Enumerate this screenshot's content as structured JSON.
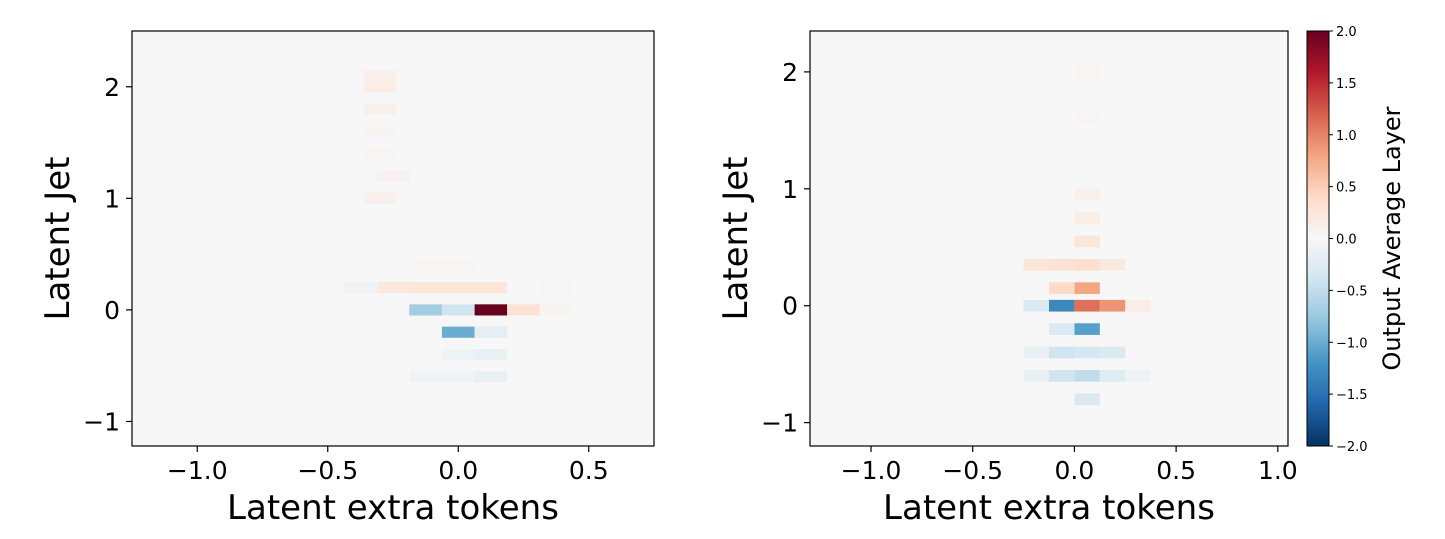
{
  "chart_data": [
    {
      "type": "heatmap",
      "xlabel": "Latent extra tokens",
      "ylabel": "Latent Jet",
      "xlim": [
        -1.25,
        0.75
      ],
      "ylim": [
        -1.22,
        2.5
      ],
      "xticks": [
        {
          "value": -1.0,
          "label": "−1.0"
        },
        {
          "value": -0.5,
          "label": "−0.5"
        },
        {
          "value": 0.0,
          "label": "0.0"
        },
        {
          "value": 0.5,
          "label": "0.5"
        }
      ],
      "yticks": [
        {
          "value": -1,
          "label": "−1"
        },
        {
          "value": 0,
          "label": "0"
        },
        {
          "value": 1,
          "label": "1"
        },
        {
          "value": 2,
          "label": "2"
        }
      ],
      "bin_size": [
        0.125,
        0.1
      ],
      "background_value": 0.0,
      "cells": [
        {
          "x": 0.125,
          "y": 0.0,
          "value": 2.0
        },
        {
          "x": -0.125,
          "y": 0.0,
          "value": -0.7
        },
        {
          "x": 0.0,
          "y": 0.0,
          "value": -0.4
        },
        {
          "x": 0.0,
          "y": -0.2,
          "value": -1.0
        },
        {
          "x": -0.125,
          "y": 0.2,
          "value": 0.25
        },
        {
          "x": 0.0,
          "y": 0.2,
          "value": 0.25
        },
        {
          "x": 0.125,
          "y": 0.2,
          "value": 0.25
        },
        {
          "x": -0.25,
          "y": 0.2,
          "value": 0.2
        },
        {
          "x": 0.25,
          "y": 0.0,
          "value": 0.3
        },
        {
          "x": -0.3,
          "y": 2.1,
          "value": 0.1
        },
        {
          "x": -0.3,
          "y": 2.0,
          "value": 0.15
        },
        {
          "x": -0.3,
          "y": 1.8,
          "value": 0.1
        },
        {
          "x": -0.3,
          "y": 1.6,
          "value": 0.05
        },
        {
          "x": -0.3,
          "y": 1.4,
          "value": 0.05
        },
        {
          "x": -0.25,
          "y": 1.2,
          "value": 0.08
        },
        {
          "x": -0.3,
          "y": 1.0,
          "value": 0.1
        },
        {
          "x": 0.125,
          "y": -0.2,
          "value": -0.2
        },
        {
          "x": 0.125,
          "y": -0.4,
          "value": -0.15
        },
        {
          "x": 0.0,
          "y": -0.4,
          "value": -0.1
        },
        {
          "x": 0.125,
          "y": -0.6,
          "value": -0.15
        },
        {
          "x": 0.0,
          "y": -0.6,
          "value": -0.08
        },
        {
          "x": -0.125,
          "y": -0.6,
          "value": -0.08
        },
        {
          "x": 0.375,
          "y": 0.2,
          "value": 0.05
        },
        {
          "x": 0.375,
          "y": 0.0,
          "value": 0.05
        },
        {
          "x": -0.375,
          "y": 0.2,
          "value": -0.08
        },
        {
          "x": -0.125,
          "y": 0.4,
          "value": 0.05
        },
        {
          "x": 0.0,
          "y": 0.4,
          "value": 0.05
        }
      ]
    },
    {
      "type": "heatmap",
      "xlabel": "Latent extra tokens",
      "ylabel": "Latent Jet",
      "xlim": [
        -1.3,
        1.05
      ],
      "ylim": [
        -1.2,
        2.35
      ],
      "xticks": [
        {
          "value": -1.0,
          "label": "−1.0"
        },
        {
          "value": -0.5,
          "label": "−0.5"
        },
        {
          "value": 0.0,
          "label": "0.0"
        },
        {
          "value": 0.5,
          "label": "0.5"
        },
        {
          "value": 1.0,
          "label": "1.0"
        }
      ],
      "yticks": [
        {
          "value": -1,
          "label": "−1"
        },
        {
          "value": 0,
          "label": "0"
        },
        {
          "value": 1,
          "label": "1"
        },
        {
          "value": 2,
          "label": "2"
        }
      ],
      "bin_size": [
        0.125,
        0.1
      ],
      "background_value": 0.0,
      "cells": [
        {
          "x": -0.0625,
          "y": 0.0,
          "value": -1.3
        },
        {
          "x": 0.0625,
          "y": 0.0,
          "value": 1.1
        },
        {
          "x": 0.1875,
          "y": 0.0,
          "value": 0.9
        },
        {
          "x": 0.0625,
          "y": -0.2,
          "value": -1.1
        },
        {
          "x": 0.0625,
          "y": 0.15,
          "value": 0.8
        },
        {
          "x": -0.0625,
          "y": 0.15,
          "value": 0.4
        },
        {
          "x": 0.0625,
          "y": 0.35,
          "value": 0.35
        },
        {
          "x": -0.0625,
          "y": 0.35,
          "value": 0.3
        },
        {
          "x": -0.1875,
          "y": 0.35,
          "value": 0.25
        },
        {
          "x": 0.1875,
          "y": 0.35,
          "value": 0.2
        },
        {
          "x": 0.0625,
          "y": 0.55,
          "value": 0.25
        },
        {
          "x": 0.0625,
          "y": 0.75,
          "value": 0.15
        },
        {
          "x": 0.0625,
          "y": 0.95,
          "value": 0.1
        },
        {
          "x": 0.3125,
          "y": 0.0,
          "value": 0.15
        },
        {
          "x": -0.1875,
          "y": 0.0,
          "value": -0.3
        },
        {
          "x": -0.0625,
          "y": -0.2,
          "value": -0.3
        },
        {
          "x": -0.0625,
          "y": -0.4,
          "value": -0.4
        },
        {
          "x": 0.0625,
          "y": -0.4,
          "value": -0.35
        },
        {
          "x": 0.0625,
          "y": -0.6,
          "value": -0.5
        },
        {
          "x": -0.0625,
          "y": -0.6,
          "value": -0.4
        },
        {
          "x": 0.0625,
          "y": -0.8,
          "value": -0.3
        },
        {
          "x": 0.1875,
          "y": -0.4,
          "value": -0.3
        },
        {
          "x": 0.1875,
          "y": -0.6,
          "value": -0.25
        },
        {
          "x": -0.1875,
          "y": -0.4,
          "value": -0.15
        },
        {
          "x": -0.1875,
          "y": -0.6,
          "value": -0.15
        },
        {
          "x": 0.3125,
          "y": -0.6,
          "value": -0.12
        },
        {
          "x": 0.0625,
          "y": 2.0,
          "value": 0.05
        },
        {
          "x": 0.0625,
          "y": 1.6,
          "value": 0.05
        }
      ]
    }
  ],
  "colorbar": {
    "label": "Output Average Layer",
    "range": [
      -2.0,
      2.0
    ],
    "ticks": [
      {
        "value": 2.0,
        "label": "2.0"
      },
      {
        "value": 1.5,
        "label": "1.5"
      },
      {
        "value": 1.0,
        "label": "1.0"
      },
      {
        "value": 0.5,
        "label": "0.5"
      },
      {
        "value": 0.0,
        "label": "0.0"
      },
      {
        "value": -0.5,
        "label": "−0.5"
      },
      {
        "value": -1.0,
        "label": "−1.0"
      },
      {
        "value": -1.5,
        "label": "−1.5"
      },
      {
        "value": -2.0,
        "label": "−2.0"
      }
    ],
    "colormap": "RdBu_r",
    "colors": [
      "#053061",
      "#2166ac",
      "#4393c3",
      "#92c5de",
      "#d1e5f0",
      "#f7f7f7",
      "#fddbc7",
      "#f4a582",
      "#d6604d",
      "#b2182b",
      "#67001f"
    ]
  }
}
